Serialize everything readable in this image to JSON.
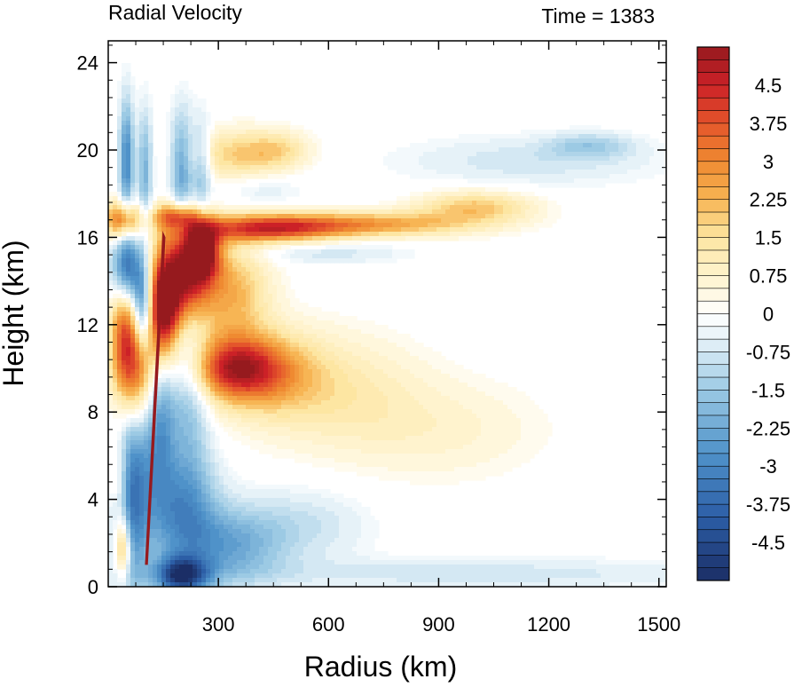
{
  "chart_data": {
    "type": "heatmap",
    "title_left": "Radial Velocity",
    "title_right": "Time = 1383",
    "xlabel": "Radius (km)",
    "ylabel": "Height (km)",
    "xlim": [
      0,
      1520
    ],
    "ylim": [
      0,
      25
    ],
    "x_ticks": [
      300,
      600,
      900,
      1200,
      1500
    ],
    "y_ticks": [
      0,
      4,
      8,
      12,
      16,
      20,
      24
    ],
    "colorbar": {
      "min": -5.25,
      "max": 5.25,
      "step": 0.25,
      "labels": [
        "4.5",
        "3.75",
        "3",
        "2.25",
        "1.5",
        "0.75",
        "0",
        "-0.75",
        "-1.5",
        "-2.25",
        "-3",
        "-3.75",
        "-4.5"
      ],
      "label_values": [
        4.5,
        3.75,
        3,
        2.25,
        1.5,
        0.75,
        0,
        -0.75,
        -1.5,
        -2.25,
        -3,
        -3.75,
        -4.5
      ],
      "stops": [
        {
          "v": -5.25,
          "color": "#1b2e66"
        },
        {
          "v": -4.0,
          "color": "#2c5ea6"
        },
        {
          "v": -2.75,
          "color": "#4f92c9"
        },
        {
          "v": -1.5,
          "color": "#9ccae4"
        },
        {
          "v": -0.5,
          "color": "#e6f2f8"
        },
        {
          "v": 0.0,
          "color": "#ffffff"
        },
        {
          "v": 0.5,
          "color": "#fff7dc"
        },
        {
          "v": 1.5,
          "color": "#fde6a2"
        },
        {
          "v": 2.25,
          "color": "#f7b554"
        },
        {
          "v": 3.0,
          "color": "#ef8a31"
        },
        {
          "v": 3.75,
          "color": "#e4552b"
        },
        {
          "v": 4.5,
          "color": "#cc2127"
        },
        {
          "v": 5.25,
          "color": "#961a1e"
        }
      ]
    },
    "features": [
      {
        "x": 200,
        "y": 14.2,
        "sx": 55,
        "sy": 1.6,
        "v": 5.0
      },
      {
        "x": 255,
        "y": 15.4,
        "sx": 35,
        "sy": 0.9,
        "v": 4.5
      },
      {
        "x": 150,
        "y": 12.5,
        "sx": 30,
        "sy": 1.5,
        "v": 4.5
      },
      {
        "x": 185,
        "y": 17.0,
        "sx": 45,
        "sy": 0.4,
        "v": 3.0
      },
      {
        "x": 430,
        "y": 16.4,
        "sx": 140,
        "sy": 0.45,
        "v": 3.8
      },
      {
        "x": 720,
        "y": 16.6,
        "sx": 200,
        "sy": 0.4,
        "v": 2.5
      },
      {
        "x": 1000,
        "y": 17.4,
        "sx": 110,
        "sy": 0.5,
        "v": 2.0
      },
      {
        "x": 350,
        "y": 19.8,
        "sx": 90,
        "sy": 0.8,
        "v": 1.8
      },
      {
        "x": 470,
        "y": 20.0,
        "sx": 60,
        "sy": 0.6,
        "v": 1.2
      },
      {
        "x": 340,
        "y": 13.5,
        "sx": 70,
        "sy": 1.6,
        "v": 2.2
      },
      {
        "x": 340,
        "y": 10.0,
        "sx": 90,
        "sy": 1.0,
        "v": 3.6
      },
      {
        "x": 430,
        "y": 9.8,
        "sx": 110,
        "sy": 1.4,
        "v": 1.8
      },
      {
        "x": 620,
        "y": 9.0,
        "sx": 160,
        "sy": 1.8,
        "v": 1.1
      },
      {
        "x": 900,
        "y": 7.2,
        "sx": 200,
        "sy": 1.6,
        "v": 0.7
      },
      {
        "x": 70,
        "y": 10.0,
        "sx": 40,
        "sy": 1.8,
        "v": 4.2
      },
      {
        "x": 40,
        "y": 12.5,
        "sx": 25,
        "sy": 2.0,
        "v": 2.5
      },
      {
        "x": 40,
        "y": 16.8,
        "sx": 35,
        "sy": 0.6,
        "v": 3.8
      },
      {
        "x": 40,
        "y": 1.8,
        "sx": 15,
        "sy": 1.0,
        "v": 3.5
      },
      {
        "x": 30,
        "y": 5.0,
        "sx": 20,
        "sy": 1.5,
        "v": 2.0
      },
      {
        "x": 50,
        "y": 14.5,
        "sx": 30,
        "sy": 1.2,
        "v": -4.5
      },
      {
        "x": 95,
        "y": 12.8,
        "sx": 18,
        "sy": 1.4,
        "v": -3.5
      },
      {
        "x": 50,
        "y": 19.5,
        "sx": 14,
        "sy": 2.0,
        "v": -3.0
      },
      {
        "x": 100,
        "y": 19.0,
        "sx": 14,
        "sy": 2.0,
        "v": -2.0
      },
      {
        "x": 200,
        "y": 19.2,
        "sx": 22,
        "sy": 1.8,
        "v": -2.5
      },
      {
        "x": 255,
        "y": 19.2,
        "sx": 18,
        "sy": 1.5,
        "v": -1.8
      },
      {
        "x": 60,
        "y": 4.5,
        "sx": 35,
        "sy": 3.2,
        "v": -3.5
      },
      {
        "x": 140,
        "y": 7.5,
        "sx": 30,
        "sy": 2.5,
        "v": -2.5
      },
      {
        "x": 220,
        "y": 9.0,
        "sx": 40,
        "sy": 3.0,
        "v": -1.8
      },
      {
        "x": 200,
        "y": 3.5,
        "sx": 70,
        "sy": 1.8,
        "v": -2.5
      },
      {
        "x": 200,
        "y": 0.5,
        "sx": 50,
        "sy": 0.6,
        "v": -4.5
      },
      {
        "x": 330,
        "y": 1.8,
        "sx": 100,
        "sy": 1.2,
        "v": -2.0
      },
      {
        "x": 520,
        "y": 2.8,
        "sx": 130,
        "sy": 1.2,
        "v": -0.9
      },
      {
        "x": 1000,
        "y": 0.6,
        "sx": 500,
        "sy": 0.5,
        "v": -0.8
      },
      {
        "x": 1150,
        "y": 19.5,
        "sx": 250,
        "sy": 0.8,
        "v": -0.8
      },
      {
        "x": 1310,
        "y": 20.2,
        "sx": 80,
        "sy": 0.4,
        "v": -1.2
      },
      {
        "x": 600,
        "y": 15.3,
        "sx": 150,
        "sy": 0.35,
        "v": -0.8
      },
      {
        "x": 420,
        "y": 18.2,
        "sx": 80,
        "sy": 0.5,
        "v": -0.6
      }
    ]
  }
}
